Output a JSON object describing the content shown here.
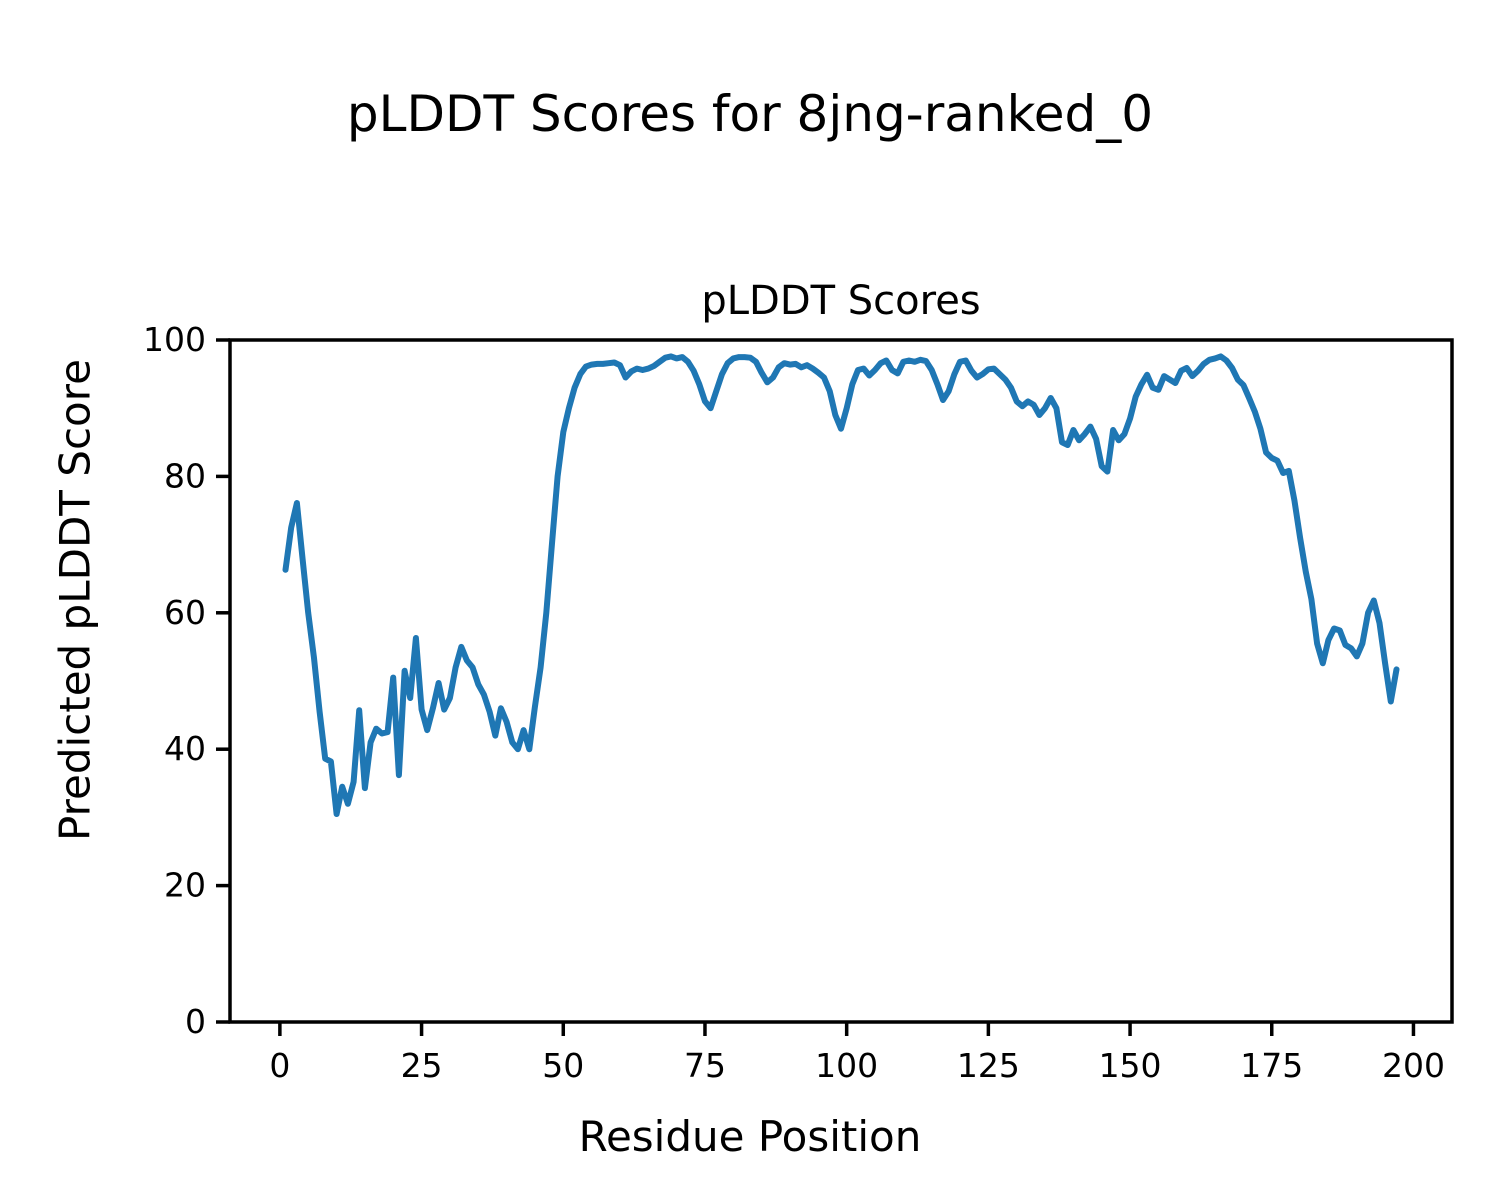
{
  "figure": {
    "suptitle": "pLDDT Scores for 8jng-ranked_0",
    "axes_title": "pLDDT Scores",
    "xlabel": "Residue Position",
    "ylabel": "Predicted pLDDT Score"
  },
  "chart_data": {
    "type": "line",
    "title": "pLDDT Scores",
    "suptitle": "pLDDT Scores for 8jng-ranked_0",
    "xlabel": "Residue Position",
    "ylabel": "Predicted pLDDT Score",
    "grid": false,
    "legend": null,
    "line_color": "#1f77b4",
    "line_width": 6,
    "xlim": [
      -8.8,
      206.8
    ],
    "ylim": [
      0,
      100
    ],
    "x_ticks": [
      0,
      25,
      50,
      75,
      100,
      125,
      150,
      175,
      200
    ],
    "y_ticks": [
      0,
      20,
      40,
      60,
      80,
      100
    ],
    "x_start": 1,
    "x_step": 1,
    "x_end": 197,
    "values": [
      66.3,
      72.5,
      76.1,
      68.0,
      60.0,
      53.5,
      45.5,
      38.6,
      38.2,
      30.5,
      34.5,
      32.0,
      35.2,
      45.7,
      34.3,
      41.0,
      43.0,
      42.3,
      42.5,
      50.5,
      36.2,
      51.5,
      47.5,
      56.3,
      45.8,
      42.8,
      46.0,
      49.7,
      45.8,
      47.5,
      52.0,
      55.0,
      53.0,
      52.0,
      49.5,
      48.0,
      45.5,
      42.0,
      46.0,
      44.0,
      41.0,
      40.0,
      42.8,
      40.0,
      46.2,
      52.0,
      60.0,
      70.0,
      80.0,
      86.5,
      90.0,
      93.0,
      95.0,
      96.1,
      96.4,
      96.5,
      96.5,
      96.6,
      96.7,
      96.3,
      94.5,
      95.4,
      95.8,
      95.6,
      95.8,
      96.2,
      96.8,
      97.4,
      97.6,
      97.3,
      97.5,
      96.8,
      95.5,
      93.5,
      91.0,
      90.0,
      92.5,
      95.0,
      96.6,
      97.3,
      97.5,
      97.5,
      97.4,
      96.8,
      95.2,
      93.8,
      94.5,
      96.0,
      96.6,
      96.4,
      96.5,
      96.0,
      96.3,
      95.8,
      95.2,
      94.5,
      92.5,
      89.0,
      87.0,
      90.0,
      93.5,
      95.6,
      95.8,
      94.8,
      95.6,
      96.6,
      97.0,
      95.6,
      95.1,
      96.8,
      97.0,
      96.8,
      97.1,
      96.9,
      95.6,
      93.5,
      91.2,
      92.5,
      95.0,
      96.8,
      97.0,
      95.5,
      94.5,
      95.0,
      95.7,
      95.8,
      95.0,
      94.2,
      93.0,
      91.0,
      90.3,
      91.0,
      90.5,
      89.0,
      90.0,
      91.5,
      90.0,
      85.0,
      84.6,
      86.8,
      85.3,
      86.2,
      87.3,
      85.5,
      81.5,
      80.7,
      86.8,
      85.3,
      86.2,
      88.5,
      91.7,
      93.5,
      94.9,
      93.0,
      92.7,
      94.7,
      94.2,
      93.7,
      95.5,
      95.9,
      94.7,
      95.5,
      96.5,
      97.1,
      97.3,
      97.6,
      97.0,
      95.9,
      94.2,
      93.4,
      91.5,
      89.5,
      87.0,
      83.5,
      82.7,
      82.3,
      80.5,
      80.8,
      76.5,
      71.0,
      66.0,
      62.0,
      55.5,
      52.6,
      56.0,
      57.7,
      57.4,
      55.3,
      54.8,
      53.6,
      55.5,
      60.0,
      61.8,
      58.5,
      52.6,
      47.0,
      51.7
    ]
  },
  "style": {
    "spine_color": "#000000",
    "background_color": "#ffffff"
  }
}
